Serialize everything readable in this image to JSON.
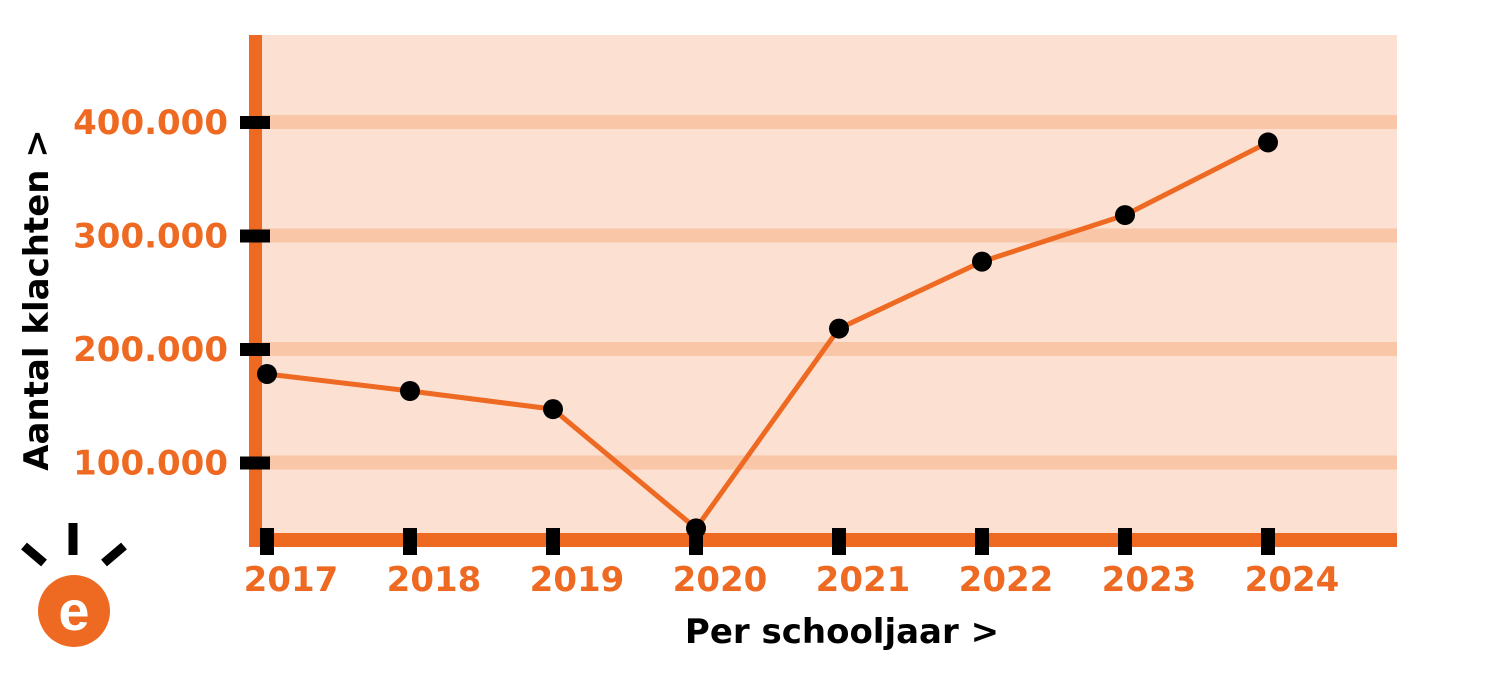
{
  "colors": {
    "plot_bg": "#fce0d2",
    "gridband": "#f9c6a8",
    "accent": "#ee6a22",
    "marker": "#000000"
  },
  "logo": {
    "icon": "lightbulb-e-logo-icon",
    "letter": "e"
  },
  "chart_data": {
    "type": "line",
    "title": "",
    "xlabel": "Per schooljaar >",
    "ylabel": "Aantal klachten >",
    "categories": [
      "2017",
      "2018",
      "2019",
      "2020",
      "2021",
      "2022",
      "2023",
      "2024"
    ],
    "series": [
      {
        "values": [
          178000,
          163000,
          147000,
          42000,
          218000,
          277000,
          318000,
          382000
        ]
      }
    ],
    "yticks": [
      100000,
      200000,
      300000,
      400000
    ],
    "ytick_labels": [
      "100.000",
      "200.000",
      "300.000",
      "400.000"
    ],
    "ylim": [
      30000,
      475000
    ],
    "grid": true,
    "legend": "none"
  }
}
